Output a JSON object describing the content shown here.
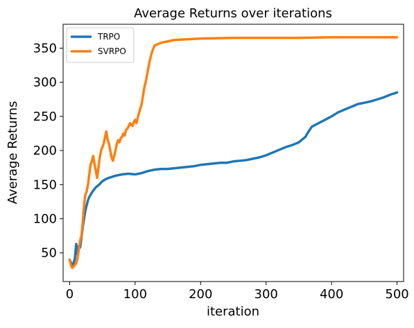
{
  "chart_data": {
    "type": "line",
    "title": "Average Returns  over iterations",
    "xlabel": "iteration",
    "ylabel": "Average Returns",
    "xlim": [
      -10,
      510
    ],
    "ylim": [
      8,
      385
    ],
    "xticks": [
      0,
      100,
      200,
      300,
      400,
      500
    ],
    "yticks": [
      50,
      100,
      150,
      200,
      250,
      300,
      350
    ],
    "grid": false,
    "legend_position": "top-left",
    "series": [
      {
        "name": "TRPO",
        "color": "#1f77b4",
        "x": [
          0,
          2,
          4,
          6,
          8,
          10,
          12,
          14,
          16,
          18,
          20,
          22,
          24,
          26,
          28,
          30,
          35,
          40,
          45,
          50,
          55,
          60,
          70,
          80,
          90,
          100,
          110,
          120,
          130,
          140,
          150,
          160,
          170,
          180,
          190,
          200,
          210,
          220,
          230,
          240,
          250,
          260,
          270,
          280,
          290,
          300,
          310,
          320,
          330,
          340,
          350,
          355,
          360,
          365,
          370,
          380,
          390,
          400,
          410,
          420,
          430,
          440,
          450,
          460,
          470,
          480,
          490,
          500
        ],
        "y": [
          40,
          36,
          30,
          35,
          42,
          63,
          48,
          60,
          58,
          72,
          88,
          100,
          112,
          120,
          127,
          132,
          140,
          146,
          150,
          155,
          158,
          160,
          163,
          165,
          166,
          165,
          167,
          170,
          172,
          173,
          173,
          174,
          175,
          176,
          177,
          179,
          180,
          181,
          182,
          182,
          184,
          185,
          186,
          188,
          190,
          193,
          197,
          201,
          205,
          208,
          212,
          216,
          220,
          228,
          235,
          240,
          245,
          250,
          256,
          260,
          264,
          268,
          270,
          272,
          275,
          278,
          282,
          285
        ]
      },
      {
        "name": "SVRPO",
        "color": "#ff7f0e",
        "x": [
          0,
          2,
          4,
          6,
          8,
          10,
          12,
          14,
          16,
          18,
          20,
          22,
          24,
          26,
          28,
          30,
          32,
          34,
          36,
          38,
          40,
          42,
          44,
          46,
          48,
          50,
          52,
          54,
          56,
          58,
          60,
          62,
          64,
          66,
          68,
          70,
          72,
          74,
          76,
          78,
          80,
          82,
          84,
          86,
          88,
          90,
          92,
          94,
          96,
          98,
          100,
          102,
          104,
          106,
          108,
          110,
          112,
          114,
          116,
          118,
          120,
          122,
          124,
          126,
          128,
          130,
          135,
          140,
          150,
          160,
          180,
          200,
          250,
          300,
          350,
          400,
          450,
          500
        ],
        "y": [
          40,
          32,
          28,
          30,
          32,
          35,
          42,
          55,
          68,
          75,
          95,
          120,
          135,
          140,
          150,
          165,
          180,
          185,
          192,
          180,
          170,
          160,
          175,
          190,
          200,
          205,
          210,
          220,
          228,
          215,
          210,
          200,
          190,
          185,
          192,
          200,
          210,
          215,
          212,
          218,
          220,
          225,
          222,
          230,
          232,
          235,
          240,
          238,
          236,
          242,
          245,
          240,
          248,
          255,
          262,
          268,
          280,
          292,
          300,
          310,
          320,
          330,
          338,
          345,
          350,
          354,
          356,
          358,
          360,
          362,
          363,
          364,
          365,
          365,
          365,
          366,
          366,
          366
        ]
      }
    ]
  }
}
